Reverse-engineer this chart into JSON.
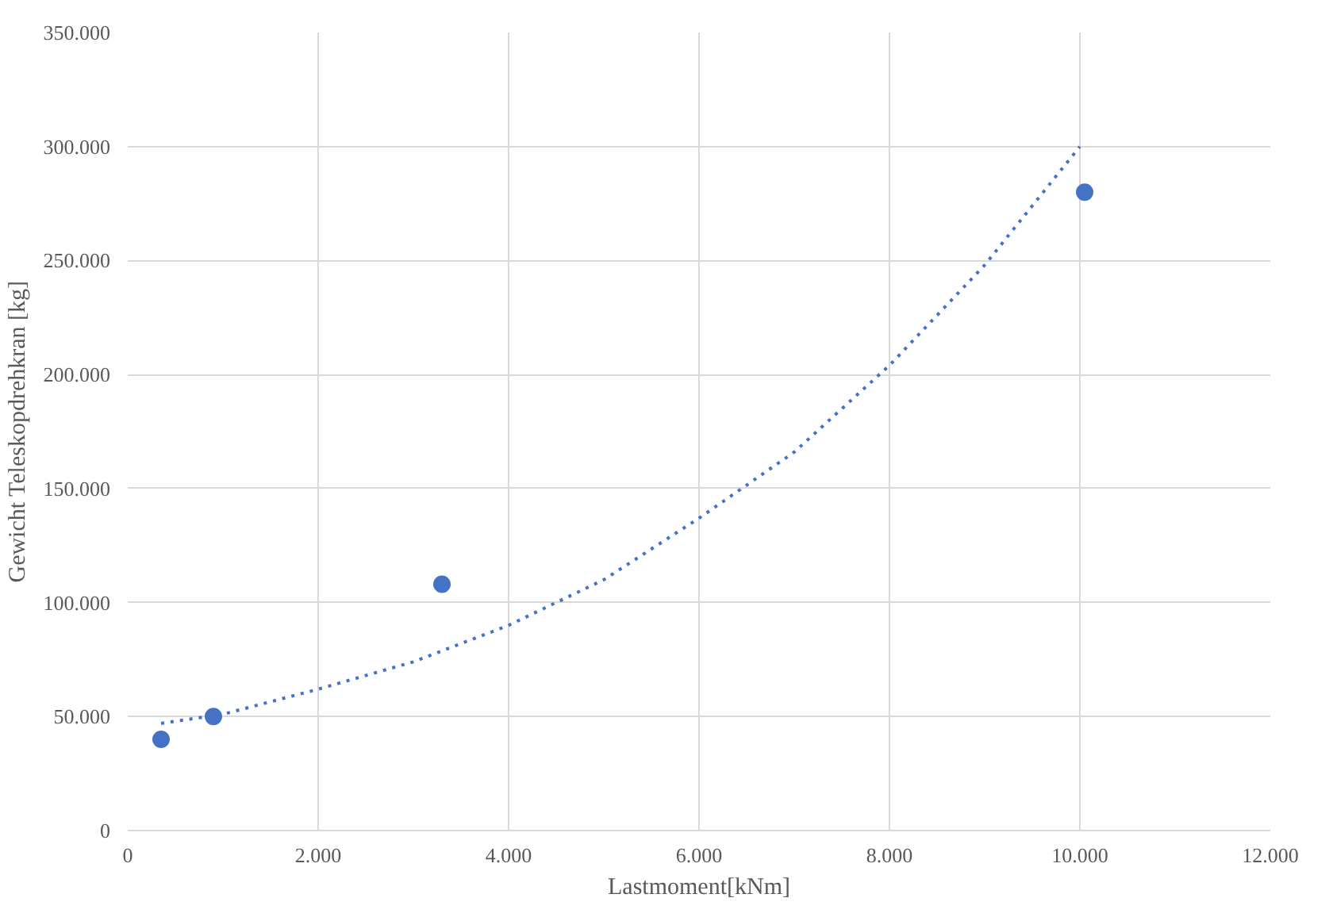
{
  "chart_data": {
    "type": "scatter",
    "xlabel": "Lastmoment[kNm]",
    "ylabel": "Gewicht Teleskopdrehkran [kg]",
    "xlim": [
      0,
      12000
    ],
    "ylim": [
      0,
      350000
    ],
    "xticks": [
      0,
      {
        "value": 2000,
        "label": "2.000"
      },
      {
        "value": 4000,
        "label": "4.000"
      },
      {
        "value": 6000,
        "label": "6.000"
      },
      {
        "value": 8000,
        "label": "8.000"
      },
      {
        "value": 10000,
        "label": "10.000"
      },
      {
        "value": 12000,
        "label": "12.000"
      }
    ],
    "yticks": [
      0,
      {
        "value": 50000,
        "label": "50.000"
      },
      {
        "value": 100000,
        "label": "100.000"
      },
      {
        "value": 150000,
        "label": "150.000"
      },
      {
        "value": 200000,
        "label": "200.000"
      },
      {
        "value": 250000,
        "label": "250.000"
      },
      {
        "value": 300000,
        "label": "300.000"
      },
      {
        "value": 350000,
        "label": "350.000"
      }
    ],
    "grid": true,
    "series": [
      {
        "color": "#4472c4",
        "marker": "circle",
        "x": [
          350,
          900,
          3300,
          10050
        ],
        "values": [
          40000,
          50000,
          108000,
          280000
        ]
      },
      {
        "type": "line",
        "color": "#4472c4",
        "line_style": "dotted",
        "marker": "none",
        "x": [
          350,
          1000,
          2000,
          3000,
          4000,
          5000,
          6000,
          7000,
          8000,
          9000,
          10000
        ],
        "values": [
          47000,
          51000,
          62000,
          74000,
          90000,
          110000,
          137000,
          166000,
          204000,
          248000,
          300000
        ]
      }
    ]
  }
}
